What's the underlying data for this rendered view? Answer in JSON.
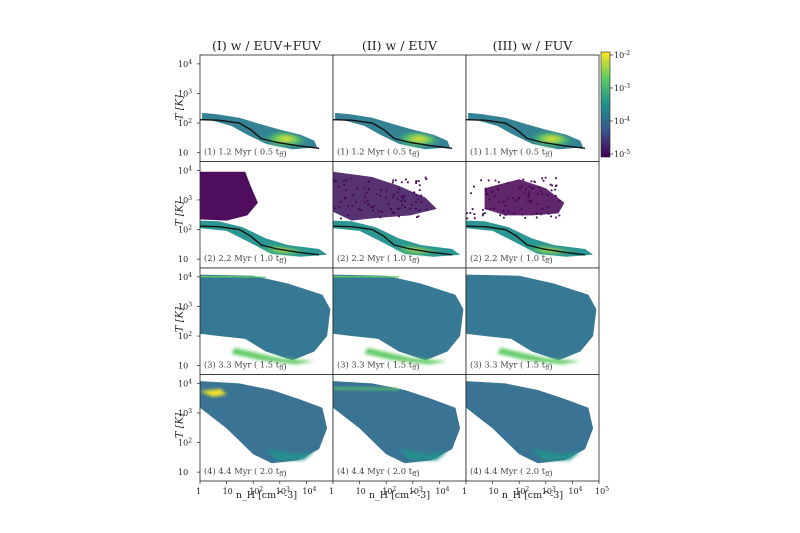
{
  "column_titles": [
    "(I) w / EUV+FUV",
    "(II) w / EUV",
    "(III) w / FUV"
  ],
  "y_axis_label": "T [K]",
  "x_axis_label": "n_H [cm^-3]",
  "y_tick_labels": [
    "10",
    "10^2",
    "10^3",
    "10^4"
  ],
  "x_tick_labels": [
    "1",
    "10",
    "10^2",
    "10^3",
    "10^4",
    "10^5"
  ],
  "colorbar": {
    "tick_labels": [
      "10^-2",
      "10^-3",
      "10^-4",
      "10^-5"
    ],
    "colormap": "viridis",
    "colors": [
      "#440154",
      "#3b528b",
      "#21918c",
      "#5ec962",
      "#fde725"
    ]
  },
  "panel_labels": [
    [
      "(1) 1.2 Myr ( 0.5 t_ff)",
      "(1) 1.2 Myr ( 0.5 t_ff)",
      "(1) 1.1 Myr ( 0.5 t_ff)"
    ],
    [
      "(2) 2.2 Myr ( 1.0 t_ff)",
      "(2) 2.2 Myr ( 1.0 t_ff)",
      "(2) 2.2 Myr ( 1.0 t_ff)"
    ],
    [
      "(3) 3.3 Myr ( 1.5 t_ff)",
      "(3) 3.3 Myr ( 1.5 t_ff)",
      "(3) 3.3 Myr ( 1.5 t_ff)"
    ],
    [
      "(4) 4.4 Myr ( 2.0 t_ff)",
      "(4) 4.4 Myr ( 2.0 t_ff)",
      "(4) 4.4 Myr ( 2.0 t_ff)"
    ]
  ],
  "chart_data": {
    "type": "heatmap",
    "layout": "4 rows x 3 columns of density-temperature phase diagrams",
    "x_scale": "log",
    "y_scale": "log",
    "xlim": [
      1,
      100000
    ],
    "ylim": [
      5,
      20000
    ],
    "colorbar_range": [
      1e-05,
      0.01
    ],
    "colorbar_scale": "log",
    "columns": [
      "(I) w / EUV+FUV",
      "(II) w / EUV",
      "(III) w / FUV"
    ],
    "rows": [
      {
        "time_myr": [
          1.2,
          1.2,
          1.1
        ],
        "t_ff": 0.5
      },
      {
        "time_myr": [
          2.2,
          2.2,
          2.2
        ],
        "t_ff": 1.0
      },
      {
        "time_myr": [
          3.3,
          3.3,
          3.3
        ],
        "t_ff": 1.5
      },
      {
        "time_myr": [
          4.4,
          4.4,
          4.4
        ],
        "t_ff": 2.0
      }
    ]
  }
}
